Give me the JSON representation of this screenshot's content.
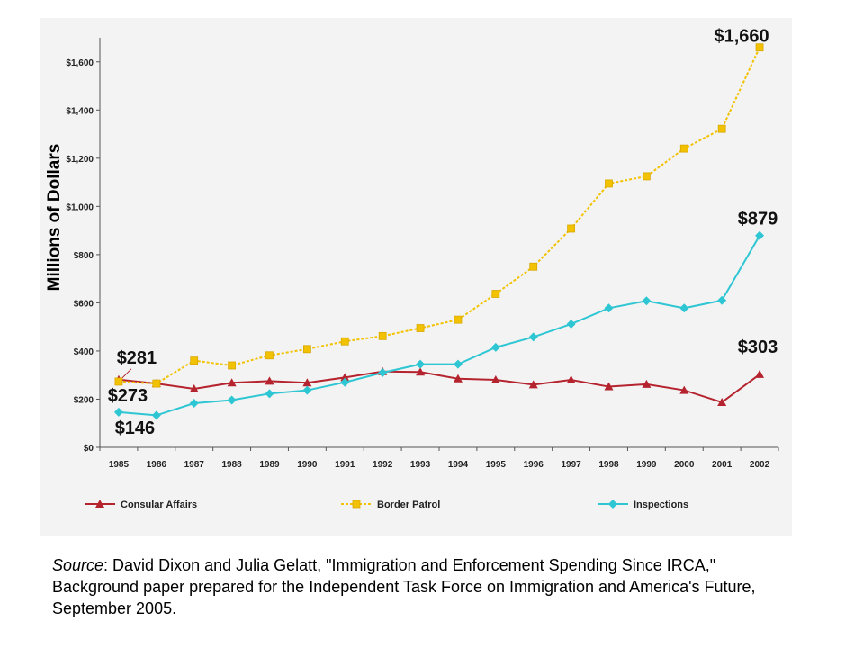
{
  "chart_data": {
    "type": "line",
    "title": "",
    "xlabel": "",
    "ylabel": "Millions of Dollars",
    "ylim": [
      0,
      1700
    ],
    "yticks": [
      0,
      200,
      400,
      600,
      800,
      1000,
      1200,
      1400,
      1600
    ],
    "ytick_labels": [
      "$0",
      "$200",
      "$400",
      "$600",
      "$800",
      "$1,000",
      "$1,200",
      "$1,400",
      "$1,600"
    ],
    "categories": [
      "1985",
      "1986",
      "1987",
      "1988",
      "1989",
      "1990",
      "1991",
      "1992",
      "1993",
      "1994",
      "1995",
      "1996",
      "1997",
      "1998",
      "1999",
      "2000",
      "2001",
      "2002"
    ],
    "grid": false,
    "legend_position": "bottom",
    "series": [
      {
        "name": "Consular Affairs",
        "color": "#b5232e",
        "marker": "triangle",
        "values": [
          281,
          265,
          243,
          268,
          275,
          268,
          290,
          315,
          313,
          285,
          280,
          260,
          280,
          252,
          262,
          237,
          187,
          303
        ]
      },
      {
        "name": "Border Patrol",
        "color": "#f2c200",
        "marker": "square",
        "values": [
          273,
          265,
          360,
          340,
          382,
          408,
          440,
          462,
          495,
          530,
          637,
          750,
          908,
          1095,
          1125,
          1240,
          1322,
          1660
        ]
      },
      {
        "name": "Inspections",
        "color": "#2ec6d3",
        "marker": "diamond",
        "values": [
          146,
          133,
          183,
          196,
          223,
          237,
          270,
          310,
          345,
          345,
          415,
          458,
          512,
          578,
          608,
          578,
          610,
          879
        ]
      }
    ],
    "annotations": [
      {
        "text": "$281",
        "series": 0,
        "index": 0
      },
      {
        "text": "$273",
        "series": 1,
        "index": 0
      },
      {
        "text": "$146",
        "series": 2,
        "index": 0
      },
      {
        "text": "$1,660",
        "series": 1,
        "index": 17
      },
      {
        "text": "$879",
        "series": 2,
        "index": 17
      },
      {
        "text": "$303",
        "series": 0,
        "index": 17
      }
    ]
  },
  "source": {
    "label": "Source",
    "text": ": David Dixon and Julia Gelatt, \"Immigration and Enforcement Spending Since IRCA,\" Background paper prepared for the Independent Task Force on Immigration and America's Future, September 2005."
  }
}
